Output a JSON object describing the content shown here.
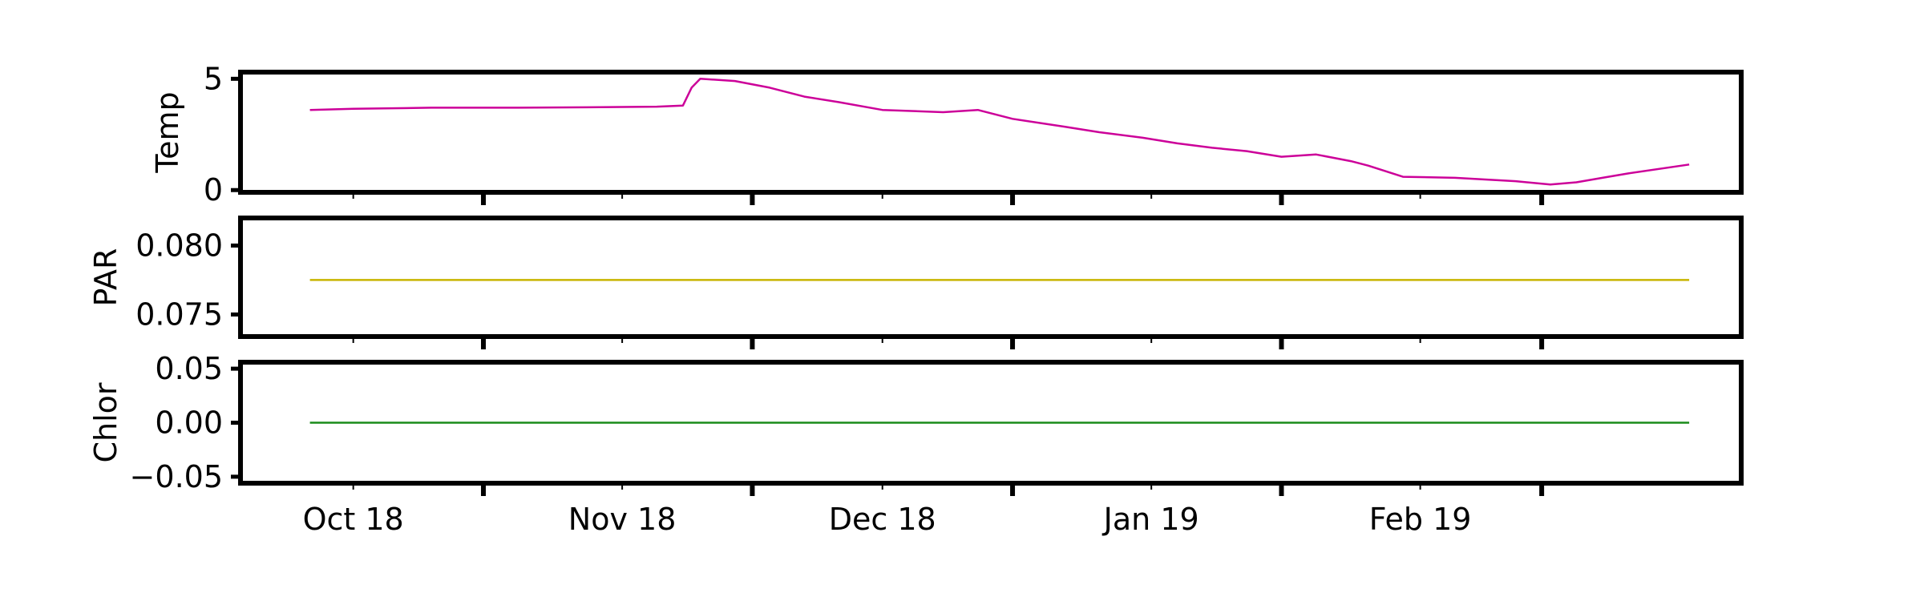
{
  "chart_data": {
    "type": "line",
    "xlabel": "",
    "x_axis": {
      "ticks": [
        {
          "date": "2018-10-01",
          "label": "Oct 18"
        },
        {
          "date": "2018-11-01",
          "label": "Nov 18"
        },
        {
          "date": "2018-12-01",
          "label": "Dec 18"
        },
        {
          "date": "2019-01-01",
          "label": "Jan 19"
        },
        {
          "date": "2019-02-01",
          "label": "Feb 19"
        }
      ]
    },
    "panels": [
      {
        "ylabel": "Temp",
        "ylim": [
          -0.1,
          5.3
        ],
        "yticks": [
          {
            "v": 0,
            "label": "0"
          },
          {
            "v": 5,
            "label": "5"
          }
        ],
        "series": [
          {
            "color": "#cc0099",
            "x": [
              "2018-09-26",
              "2018-10-01",
              "2018-10-10",
              "2018-10-20",
              "2018-10-28",
              "2018-11-05",
              "2018-11-08",
              "2018-11-09",
              "2018-11-10",
              "2018-11-14",
              "2018-11-18",
              "2018-11-22",
              "2018-11-26",
              "2018-12-01",
              "2018-12-08",
              "2018-12-12",
              "2018-12-16",
              "2018-12-22",
              "2018-12-26",
              "2018-12-31",
              "2019-01-04",
              "2019-01-08",
              "2019-01-12",
              "2019-01-16",
              "2019-01-20",
              "2019-01-24",
              "2019-01-26",
              "2019-01-30",
              "2019-02-05",
              "2019-02-12",
              "2019-02-16",
              "2019-02-19",
              "2019-02-22",
              "2019-02-25",
              "2019-03-04"
            ],
            "y": [
              3.6,
              3.65,
              3.7,
              3.7,
              3.72,
              3.75,
              3.8,
              4.6,
              5.0,
              4.9,
              4.6,
              4.2,
              3.95,
              3.6,
              3.5,
              3.6,
              3.2,
              2.85,
              2.6,
              2.35,
              2.1,
              1.9,
              1.75,
              1.5,
              1.6,
              1.3,
              1.1,
              0.6,
              0.55,
              0.4,
              0.25,
              0.35,
              0.55,
              0.75,
              1.15
            ]
          }
        ]
      },
      {
        "ylabel": "PAR",
        "ylim": [
          0.0734,
          0.082
        ],
        "yticks": [
          {
            "v": 0.075,
            "label": "0.075"
          },
          {
            "v": 0.08,
            "label": "0.080"
          }
        ],
        "series": [
          {
            "color": "#c8b400",
            "x": [
              "2018-09-26",
              "2019-03-04"
            ],
            "y": [
              0.0775,
              0.0775
            ]
          }
        ]
      },
      {
        "ylabel": "Chlor",
        "ylim": [
          -0.056,
          0.056
        ],
        "yticks": [
          {
            "v": -0.05,
            "label": "−0.05"
          },
          {
            "v": 0,
            "label": "0.00"
          },
          {
            "v": 0.05,
            "label": "0.05"
          }
        ],
        "series": [
          {
            "color": "#1a8c1a",
            "x": [
              "2018-09-26",
              "2019-03-04"
            ],
            "y": [
              0,
              0
            ]
          }
        ]
      }
    ],
    "xlim": [
      "2018-09-18",
      "2019-03-10"
    ],
    "grid": false,
    "legend": "none"
  }
}
